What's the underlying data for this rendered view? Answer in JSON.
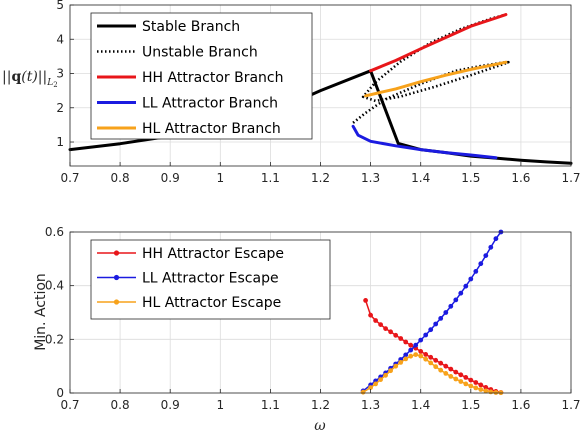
{
  "chart_data": [
    {
      "type": "line",
      "ylabel": "||q(t)||L2",
      "xlim": [
        0.7,
        1.7
      ],
      "ylim": [
        0.3,
        5
      ],
      "xticks": [
        "0.7",
        "0.8",
        "0.9",
        "1",
        "1.1",
        "1.2",
        "1.3",
        "1.4",
        "1.5",
        "1.6",
        "1.7"
      ],
      "yticks": [
        "1",
        "2",
        "3",
        "4",
        "5"
      ],
      "grid": true,
      "legend_position": "top-left",
      "series": [
        {
          "name": "Stable Branch",
          "color": "#000000",
          "style": "solid",
          "points": [
            [
              0.7,
              0.78
            ],
            [
              0.8,
              0.95
            ],
            [
              0.9,
              1.17
            ],
            [
              1.0,
              1.45
            ],
            [
              1.1,
              1.85
            ],
            [
              1.2,
              2.5
            ],
            [
              1.3,
              3.08
            ],
            [
              1.355,
              0.96
            ],
            [
              1.4,
              0.78
            ],
            [
              1.45,
              0.69
            ],
            [
              1.5,
              0.59
            ],
            [
              1.55,
              0.53
            ],
            [
              1.6,
              0.47
            ],
            [
              1.65,
              0.42
            ],
            [
              1.7,
              0.38
            ]
          ]
        },
        {
          "name": "Unstable Branch",
          "color": "#000000",
          "style": "dotted",
          "points": [
            [
              1.265,
              1.56
            ],
            [
              1.29,
              1.85
            ],
            [
              1.33,
              2.25
            ],
            [
              1.4,
              2.7
            ],
            [
              1.47,
              3.08
            ],
            [
              1.52,
              3.22
            ],
            [
              1.565,
              3.32
            ],
            [
              1.575,
              3.33
            ],
            [
              1.56,
              3.25
            ],
            [
              1.5,
              2.95
            ],
            [
              1.43,
              2.62
            ],
            [
              1.36,
              2.33
            ],
            [
              1.31,
              2.2
            ],
            [
              1.285,
              2.32
            ],
            [
              1.31,
              2.75
            ],
            [
              1.36,
              3.35
            ],
            [
              1.42,
              3.9
            ],
            [
              1.48,
              4.3
            ],
            [
              1.54,
              4.6
            ],
            [
              1.57,
              4.72
            ]
          ]
        },
        {
          "name": "HH Attractor Branch",
          "color": "#e8161a",
          "style": "solid",
          "points": [
            [
              1.3,
              3.08
            ],
            [
              1.35,
              3.38
            ],
            [
              1.4,
              3.72
            ],
            [
              1.45,
              4.05
            ],
            [
              1.5,
              4.38
            ],
            [
              1.55,
              4.62
            ],
            [
              1.57,
              4.72
            ]
          ]
        },
        {
          "name": "LL Attractor Branch",
          "color": "#1b1be0",
          "style": "solid",
          "points": [
            [
              1.265,
              1.46
            ],
            [
              1.275,
              1.2
            ],
            [
              1.3,
              1.02
            ],
            [
              1.35,
              0.89
            ],
            [
              1.4,
              0.78
            ],
            [
              1.45,
              0.69
            ],
            [
              1.5,
              0.62
            ],
            [
              1.55,
              0.54
            ]
          ]
        },
        {
          "name": "HL Attractor Branch",
          "color": "#f7a21b",
          "style": "solid",
          "points": [
            [
              1.29,
              2.35
            ],
            [
              1.35,
              2.55
            ],
            [
              1.4,
              2.76
            ],
            [
              1.45,
              2.95
            ],
            [
              1.5,
              3.12
            ],
            [
              1.55,
              3.27
            ],
            [
              1.57,
              3.33
            ]
          ]
        }
      ]
    },
    {
      "type": "line",
      "ylabel": "Min. Action",
      "xlabel": "ω",
      "xlim": [
        0.7,
        1.7
      ],
      "ylim": [
        0,
        0.6
      ],
      "xticks": [
        "0.7",
        "0.8",
        "0.9",
        "1",
        "1.1",
        "1.2",
        "1.3",
        "1.4",
        "1.5",
        "1.6",
        "1.7"
      ],
      "yticks": [
        "0",
        "0.2",
        "0.4",
        "0.6"
      ],
      "grid": true,
      "legend_position": "top-left",
      "series": [
        {
          "name": "HH Attractor Escape",
          "color": "#e8161a",
          "marker": "dot",
          "points": [
            [
              1.29,
              0.345
            ],
            [
              1.3,
              0.29
            ],
            [
              1.31,
              0.27
            ],
            [
              1.32,
              0.255
            ],
            [
              1.33,
              0.24
            ],
            [
              1.34,
              0.228
            ],
            [
              1.35,
              0.215
            ],
            [
              1.36,
              0.203
            ],
            [
              1.37,
              0.19
            ],
            [
              1.38,
              0.178
            ],
            [
              1.39,
              0.167
            ],
            [
              1.4,
              0.155
            ],
            [
              1.41,
              0.144
            ],
            [
              1.42,
              0.133
            ],
            [
              1.43,
              0.122
            ],
            [
              1.44,
              0.111
            ],
            [
              1.45,
              0.1
            ],
            [
              1.46,
              0.089
            ],
            [
              1.47,
              0.078
            ],
            [
              1.48,
              0.068
            ],
            [
              1.49,
              0.058
            ],
            [
              1.5,
              0.048
            ],
            [
              1.51,
              0.039
            ],
            [
              1.52,
              0.03
            ],
            [
              1.53,
              0.021
            ],
            [
              1.54,
              0.013
            ],
            [
              1.55,
              0.006
            ],
            [
              1.56,
              0.002
            ]
          ]
        },
        {
          "name": "LL Attractor Escape",
          "color": "#1b1be0",
          "marker": "dot",
          "points": [
            [
              1.285,
              0.008
            ],
            [
              1.3,
              0.03
            ],
            [
              1.31,
              0.045
            ],
            [
              1.32,
              0.06
            ],
            [
              1.33,
              0.075
            ],
            [
              1.34,
              0.092
            ],
            [
              1.35,
              0.108
            ],
            [
              1.36,
              0.125
            ],
            [
              1.37,
              0.142
            ],
            [
              1.38,
              0.16
            ],
            [
              1.39,
              0.178
            ],
            [
              1.4,
              0.197
            ],
            [
              1.41,
              0.216
            ],
            [
              1.42,
              0.236
            ],
            [
              1.43,
              0.257
            ],
            [
              1.44,
              0.278
            ],
            [
              1.45,
              0.3
            ],
            [
              1.46,
              0.323
            ],
            [
              1.47,
              0.347
            ],
            [
              1.48,
              0.372
            ],
            [
              1.49,
              0.398
            ],
            [
              1.5,
              0.425
            ],
            [
              1.51,
              0.453
            ],
            [
              1.52,
              0.482
            ],
            [
              1.53,
              0.512
            ],
            [
              1.54,
              0.543
            ],
            [
              1.55,
              0.575
            ],
            [
              1.56,
              0.6
            ]
          ]
        },
        {
          "name": "HL Attractor Escape",
          "color": "#f7a21b",
          "marker": "dot",
          "points": [
            [
              1.285,
              0.003
            ],
            [
              1.3,
              0.02
            ],
            [
              1.31,
              0.034
            ],
            [
              1.32,
              0.05
            ],
            [
              1.33,
              0.066
            ],
            [
              1.34,
              0.083
            ],
            [
              1.35,
              0.1
            ],
            [
              1.36,
              0.114
            ],
            [
              1.37,
              0.127
            ],
            [
              1.38,
              0.137
            ],
            [
              1.39,
              0.143
            ],
            [
              1.4,
              0.138
            ],
            [
              1.41,
              0.126
            ],
            [
              1.42,
              0.112
            ],
            [
              1.43,
              0.098
            ],
            [
              1.44,
              0.085
            ],
            [
              1.45,
              0.073
            ],
            [
              1.46,
              0.062
            ],
            [
              1.47,
              0.052
            ],
            [
              1.48,
              0.043
            ],
            [
              1.49,
              0.034
            ],
            [
              1.5,
              0.026
            ],
            [
              1.51,
              0.019
            ],
            [
              1.52,
              0.013
            ],
            [
              1.53,
              0.008
            ],
            [
              1.54,
              0.004
            ],
            [
              1.55,
              0.002
            ],
            [
              1.56,
              0.001
            ]
          ]
        }
      ]
    }
  ]
}
